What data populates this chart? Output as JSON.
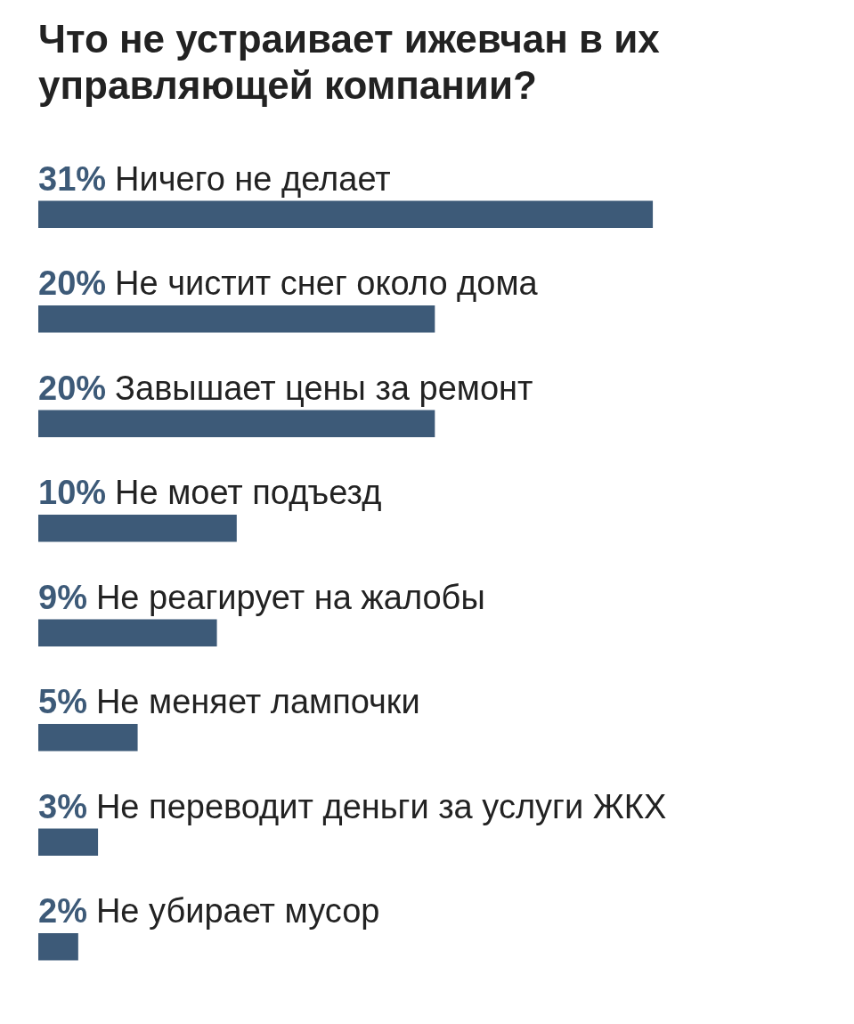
{
  "chart_data": {
    "type": "bar",
    "orientation": "horizontal",
    "title": "Что не устраивает ижевчан в их управляющей компании?",
    "categories": [
      "Ничего не делает",
      "Не чистит снег около дома",
      "Завышает цены за ремонт",
      "Не моет подъезд",
      "Не реагирует на жалобы",
      "Не меняет лампочки",
      "Не переводит деньги за услуги ЖКХ",
      "Не убирает мусор"
    ],
    "values": [
      31,
      20,
      20,
      10,
      9,
      5,
      3,
      2
    ],
    "value_labels": [
      "31%",
      "20%",
      "20%",
      "10%",
      "9%",
      "5%",
      "3%",
      "2%"
    ],
    "color": "#3d5a78"
  }
}
